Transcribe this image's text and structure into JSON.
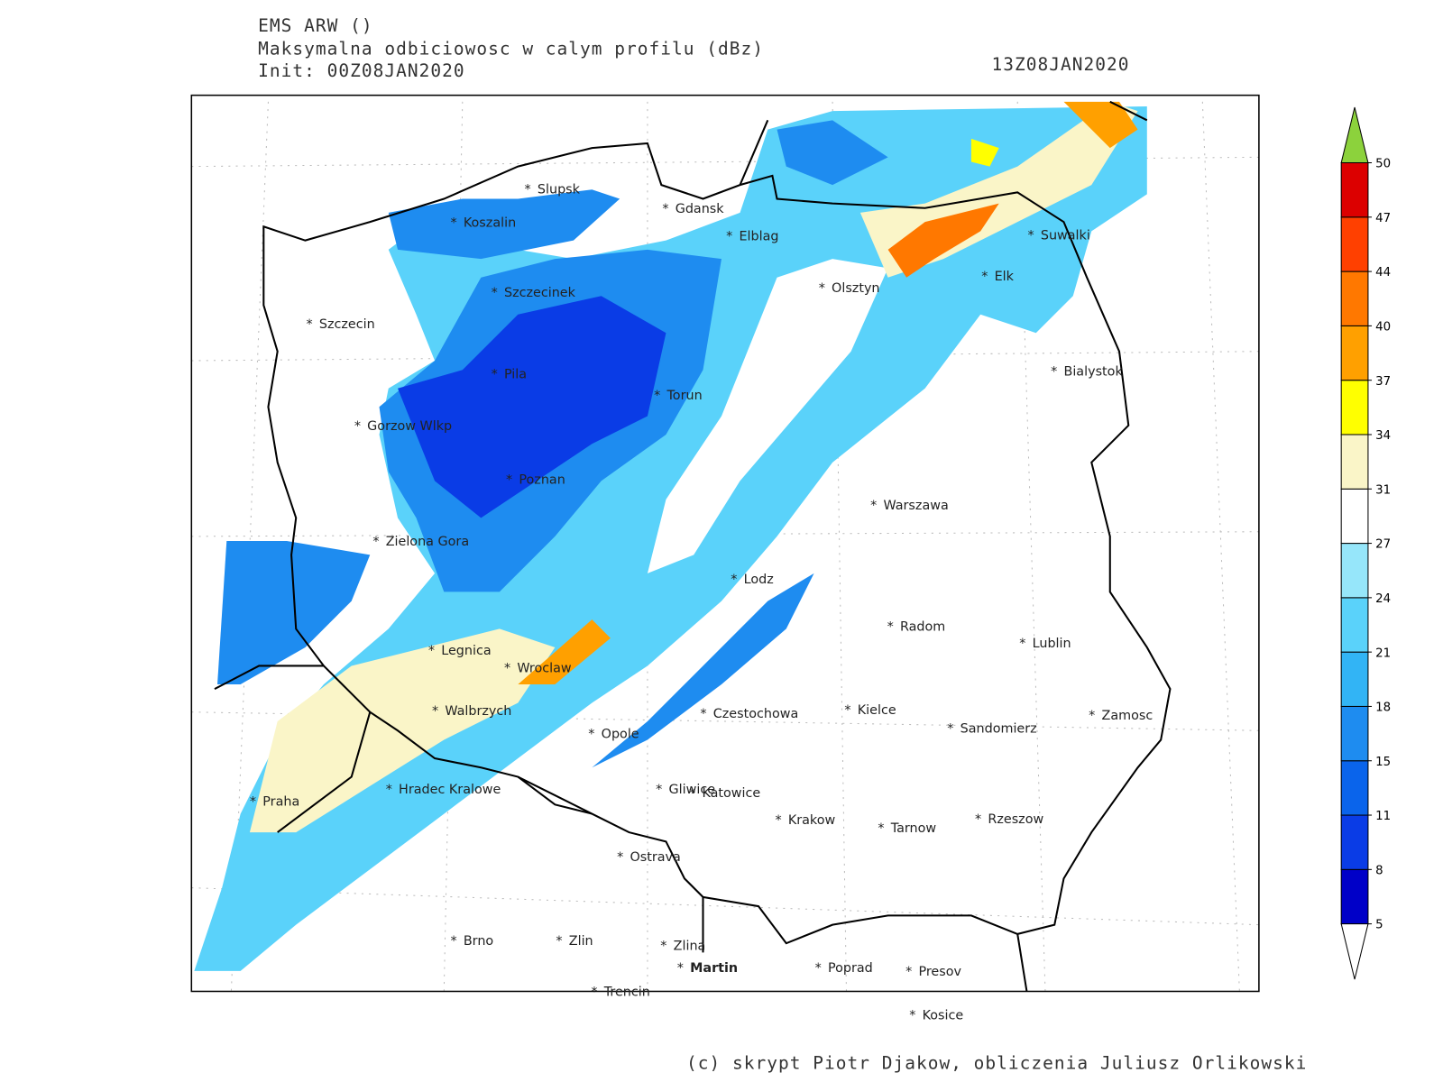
{
  "header": {
    "model": "EMS ARW ()",
    "field": "Maksymalna odbiciowosc w calym profilu (dBz)",
    "init": "Init: 00Z08JAN2020",
    "valid": "13Z08JAN2020"
  },
  "cities": [
    "Slupsk",
    "Koszalin",
    "Gdansk",
    "Elblag",
    "Suwalki",
    "Szczecinek",
    "Olsztyn",
    "Elk",
    "Szczecin",
    "Bialystok",
    "Pila",
    "Torun",
    "Gorzow Wlkp",
    "Poznan",
    "Warszawa",
    "Zielona Gora",
    "Lodz",
    "Radom",
    "Lublin",
    "Legnica",
    "Wroclaw",
    "Walbrzych",
    "Czestochowa",
    "Kielce",
    "Zamosc",
    "Sandomierz",
    "Opole",
    "Hradec Kralowe",
    "Praha",
    "Gliwice",
    "Katowice",
    "Krakow",
    "Tarnow",
    "Rzeszow",
    "Ostrava",
    "Brno",
    "Zlin",
    "Zlina",
    "Martin",
    "Poprad",
    "Presov",
    "Trencin",
    "Kosice"
  ],
  "colorbar": {
    "levels": [
      5,
      8,
      11,
      15,
      18,
      21,
      24,
      27,
      31,
      34,
      37,
      40,
      44,
      47,
      50
    ],
    "colors": [
      "#0000c8",
      "#0a3ce6",
      "#0a64eb",
      "#1e8cf0",
      "#32b4f5",
      "#5ad2fa",
      "#96e6fa",
      "#ffffff",
      "#faf5c8",
      "#ffff00",
      "#ffa000",
      "#ff7800",
      "#ff4000",
      "#dc0000"
    ],
    "over_color": "#8cd23c",
    "under_color": "#ffffff"
  },
  "footer": "(c) skrypt Piotr Djakow, obliczenia Juliusz Orlikowski"
}
